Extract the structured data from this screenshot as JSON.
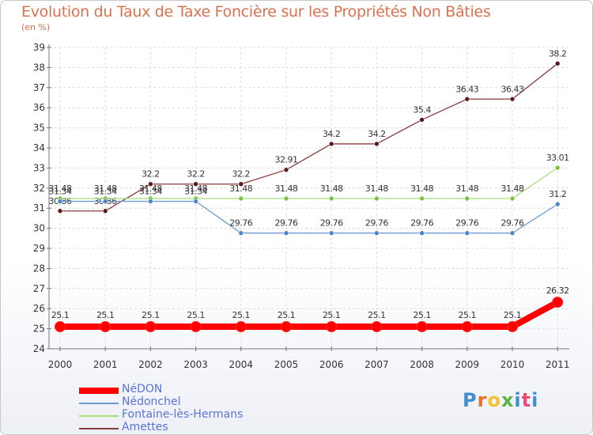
{
  "title": "Evolution du Taux de Taxe Foncière sur les Propriétés Non Bâties",
  "unit_label": "(en %)",
  "logo": {
    "text": "Proxiti",
    "colors": [
      "#3f8fd0",
      "#e8702a",
      "#f2c230",
      "#5bb544",
      "#3f8fd0",
      "#e84a7a",
      "#3f8fd0"
    ]
  },
  "chart_data": {
    "type": "line",
    "title": "Evolution du Taux de Taxe Foncière sur les Propriétés Non Bâties",
    "ylabel": "(en %)",
    "xlabel": "",
    "ylim": [
      24,
      39
    ],
    "yticks": [
      "24",
      "25",
      "26",
      "27",
      "28",
      "29",
      "30",
      "31",
      "32",
      "33",
      "34",
      "35",
      "36",
      "37",
      "38",
      "39"
    ],
    "categories": [
      "2000",
      "2001",
      "2002",
      "2003",
      "2004",
      "2005",
      "2006",
      "2007",
      "2008",
      "2009",
      "2010",
      "2011"
    ],
    "series": [
      {
        "name": "NéDON",
        "color": "#ff0000",
        "marker": "#ff0000",
        "thick": true,
        "values": [
          25.1,
          25.1,
          25.1,
          25.1,
          25.1,
          25.1,
          25.1,
          25.1,
          25.1,
          25.1,
          25.1,
          26.32
        ],
        "labels": [
          "25.1",
          "25.1",
          "25.1",
          "25.1",
          "25.1",
          "25.1",
          "25.1",
          "25.1",
          "25.1",
          "25.1",
          "25.1",
          "26.32"
        ]
      },
      {
        "name": "Nédonchel",
        "color": "#6f9bd1",
        "marker": "#4a86c8",
        "thick": false,
        "values": [
          31.34,
          31.34,
          31.34,
          31.34,
          29.76,
          29.76,
          29.76,
          29.76,
          29.76,
          29.76,
          29.76,
          31.2
        ],
        "labels": [
          "31.34",
          "31.34",
          "31.34",
          "31.34",
          "29.76",
          "29.76",
          "29.76",
          "29.76",
          "29.76",
          "29.76",
          "29.76",
          "31.2"
        ]
      },
      {
        "name": "Fontaine-lès-Hermans",
        "color": "#a6de7a",
        "marker": "#7cc242",
        "thick": false,
        "values": [
          31.48,
          31.48,
          31.48,
          31.48,
          31.48,
          31.48,
          31.48,
          31.48,
          31.48,
          31.48,
          31.48,
          33.01
        ],
        "labels": [
          "31.48",
          "31.48",
          "31.48",
          "31.48",
          "31.48",
          "31.48",
          "31.48",
          "31.48",
          "31.48",
          "31.48",
          "31.48",
          "33.01"
        ]
      },
      {
        "name": "Amettes",
        "color": "#8a3a3a",
        "marker": "#5a1a1a",
        "thick": false,
        "values": [
          30.86,
          30.86,
          32.2,
          32.2,
          32.2,
          32.91,
          34.2,
          34.2,
          35.4,
          36.43,
          36.43,
          38.2
        ],
        "labels": [
          "30.86",
          "30.86",
          "32.2",
          "32.2",
          "32.2",
          "32.91",
          "34.2",
          "34.2",
          "35.4",
          "36.43",
          "36.43",
          "38.2"
        ]
      }
    ]
  }
}
